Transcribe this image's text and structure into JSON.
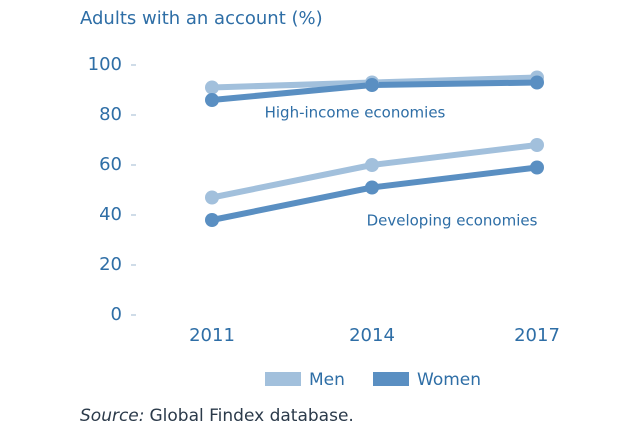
{
  "chart_data": {
    "type": "line",
    "title": "Adults with an account (%)",
    "categories": [
      "2011",
      "2014",
      "2017"
    ],
    "series": [
      {
        "name": "Men",
        "color": "#a2c0dc",
        "values": [
          [
            91,
            93,
            95
          ],
          [
            47,
            60,
            68
          ]
        ]
      },
      {
        "name": "Women",
        "color": "#5a8fc2",
        "values": [
          [
            86,
            92,
            93
          ],
          [
            38,
            51,
            59
          ]
        ]
      }
    ],
    "annotations": [
      "High-income economies",
      "Developing economies"
    ],
    "ylim": [
      0,
      100
    ],
    "yticks": [
      0,
      20,
      40,
      60,
      80,
      100
    ],
    "grid": false,
    "legend": "bottom",
    "source_label": "Source:",
    "source": "Global Findex database."
  }
}
